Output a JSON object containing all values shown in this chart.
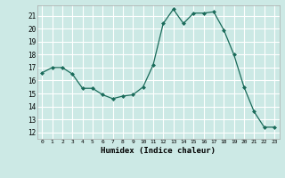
{
  "x": [
    0,
    1,
    2,
    3,
    4,
    5,
    6,
    7,
    8,
    9,
    10,
    11,
    12,
    13,
    14,
    15,
    16,
    17,
    18,
    19,
    20,
    21,
    22,
    23
  ],
  "y": [
    16.6,
    17.0,
    17.0,
    16.5,
    15.4,
    15.4,
    14.9,
    14.6,
    14.8,
    14.9,
    15.5,
    17.2,
    20.4,
    21.5,
    20.4,
    21.2,
    21.2,
    21.3,
    19.9,
    18.0,
    15.5,
    13.6,
    12.4,
    12.4
  ],
  "line_color": "#1a6b5a",
  "marker": "D",
  "marker_size": 2,
  "bg_color": "#cce9e5",
  "grid_color": "#ffffff",
  "xlabel": "Humidex (Indice chaleur)",
  "ylabel_ticks": [
    12,
    13,
    14,
    15,
    16,
    17,
    18,
    19,
    20,
    21
  ],
  "ylim": [
    11.5,
    21.8
  ],
  "xlim": [
    -0.5,
    23.5
  ],
  "xticks": [
    0,
    1,
    2,
    3,
    4,
    5,
    6,
    7,
    8,
    9,
    10,
    11,
    12,
    13,
    14,
    15,
    16,
    17,
    18,
    19,
    20,
    21,
    22,
    23
  ]
}
